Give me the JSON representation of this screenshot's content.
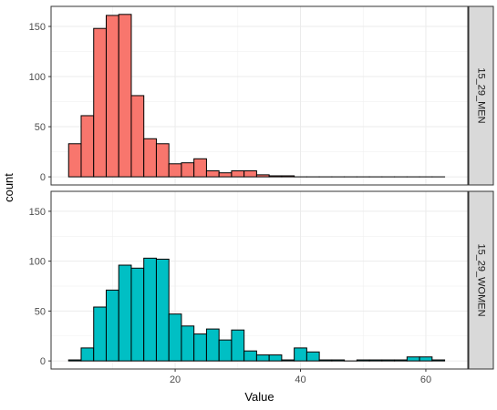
{
  "chart_data": {
    "type": "bar",
    "subtype": "faceted-histogram",
    "xlabel": "Value",
    "ylabel": "count",
    "x_ticks": [
      20,
      40,
      60
    ],
    "y_ticks": [
      0,
      50,
      100,
      150
    ],
    "xlim": [
      0.2,
      66.7
    ],
    "ylim": [
      -8.1,
      170
    ],
    "grid": true,
    "legend": "none",
    "bin_width": 2.0,
    "bin_start": 3.0,
    "facets": [
      {
        "label": "15_29_MEN",
        "fill": "#F8766D",
        "counts": [
          33,
          61,
          148,
          161,
          162,
          81,
          38,
          33,
          13,
          14,
          18,
          6,
          4,
          6,
          6,
          2,
          1,
          1,
          0,
          0,
          0,
          0,
          0,
          0,
          0,
          0,
          0,
          0,
          0,
          0
        ]
      },
      {
        "label": "15_29_WOMEN",
        "fill": "#00BFC4",
        "counts": [
          1,
          13,
          54,
          71,
          96,
          93,
          103,
          102,
          47,
          35,
          27,
          32,
          21,
          31,
          10,
          6,
          6,
          1,
          13,
          9,
          1,
          1,
          0,
          1,
          1,
          1,
          1,
          4,
          4,
          1
        ]
      }
    ]
  }
}
